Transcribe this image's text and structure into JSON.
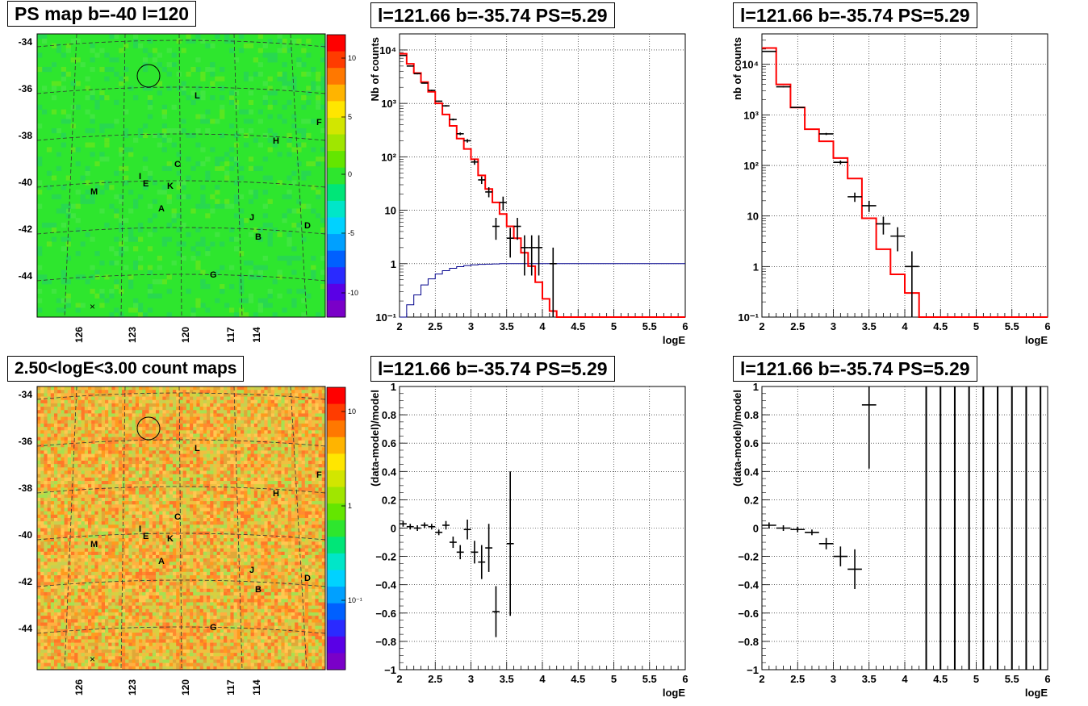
{
  "panels": {
    "ps_map": {
      "title": "PS map b=-40 l=120",
      "colorbar_ticks": [
        "10",
        "5",
        "0",
        "-5",
        "-10"
      ],
      "y_ticks": [
        "-34",
        "-36",
        "-38",
        "-40",
        "-42",
        "-44"
      ],
      "x_ticks": [
        "126",
        "123",
        "120",
        "117",
        "114"
      ],
      "labels": [
        "L",
        "F",
        "H",
        "C",
        "I",
        "E",
        "K",
        "M",
        "A",
        "J",
        "D",
        "B",
        "G"
      ]
    },
    "count_map": {
      "title": "2.50<logE<3.00 count maps",
      "colorbar_ticks": [
        "10",
        "1",
        "10⁻¹"
      ],
      "y_ticks": [
        "-34",
        "-36",
        "-38",
        "-40",
        "-42",
        "-44"
      ],
      "x_ticks": [
        "126",
        "123",
        "120",
        "117",
        "114"
      ],
      "labels": [
        "L",
        "F",
        "H",
        "C",
        "I",
        "E",
        "K",
        "M",
        "A",
        "J",
        "D",
        "B",
        "G"
      ]
    },
    "spec_left": {
      "title": "l=121.66 b=-35.74 PS=5.29",
      "ylabel": "Nb of counts",
      "xlabel": "logE"
    },
    "spec_right": {
      "title": "l=121.66 b=-35.74 PS=5.29",
      "ylabel": "nb of counts",
      "xlabel": "logE"
    },
    "resid_left": {
      "title": "l=121.66 b=-35.74 PS=5.29",
      "ylabel": "(data-model)/model",
      "xlabel": "logE"
    },
    "resid_right": {
      "title": "l=121.66 b=-35.74 PS=5.29",
      "ylabel": "(data-model)/model",
      "xlabel": "logE"
    }
  },
  "chart_data": [
    {
      "type": "heatmap",
      "id": "ps_map",
      "title": "PS map b=-40 l=120",
      "colorscale": "rainbow",
      "zrange": [
        -12,
        12
      ],
      "background_value": 0,
      "x_ticks": [
        126,
        123,
        120,
        117,
        114
      ],
      "y_ticks": [
        -34,
        -36,
        -38,
        -40,
        -42,
        -44
      ]
    },
    {
      "type": "heatmap",
      "id": "count_map",
      "title": "2.50<logE<3.00 count maps",
      "colorscale": "rainbow-log",
      "z_ticks": [
        10,
        1,
        0.1
      ],
      "x_ticks": [
        126,
        123,
        120,
        117,
        114
      ],
      "y_ticks": [
        -34,
        -36,
        -38,
        -40,
        -42,
        -44
      ]
    },
    {
      "type": "line",
      "id": "spec_left",
      "title": "l=121.66 b=-35.74 PS=5.29",
      "xlabel": "logE",
      "ylabel": "Nb of counts",
      "xlim": [
        2,
        6
      ],
      "ylim": [
        0.1,
        20000
      ],
      "yscale": "log",
      "grid": true,
      "x_ticks": [
        2,
        2.5,
        3,
        3.5,
        4,
        4.5,
        5,
        5.5,
        6
      ],
      "y_ticks": [
        0.1,
        1,
        10,
        100,
        1000,
        10000
      ],
      "y_tick_labels": [
        "10⁻¹",
        "1",
        "10",
        "10²",
        "10³",
        "10⁴"
      ],
      "model_color": "#ff0000",
      "data_points": [
        {
          "x": 2.05,
          "y": 7900,
          "xerr": 0.05,
          "ylo": 7800,
          "yhi": 8000
        },
        {
          "x": 2.15,
          "y": 5000,
          "xerr": 0.05,
          "ylo": 4900,
          "yhi": 5100
        },
        {
          "x": 2.25,
          "y": 3600,
          "xerr": 0.05,
          "ylo": 3500,
          "yhi": 3700
        },
        {
          "x": 2.35,
          "y": 2400,
          "xerr": 0.05,
          "ylo": 2350,
          "yhi": 2450
        },
        {
          "x": 2.45,
          "y": 1750,
          "xerr": 0.05,
          "ylo": 1700,
          "yhi": 1800
        },
        {
          "x": 2.55,
          "y": 1100,
          "xerr": 0.05,
          "ylo": 1070,
          "yhi": 1130
        },
        {
          "x": 2.65,
          "y": 900,
          "xerr": 0.05,
          "ylo": 870,
          "yhi": 930
        },
        {
          "x": 2.75,
          "y": 500,
          "xerr": 0.05,
          "ylo": 480,
          "yhi": 520
        },
        {
          "x": 2.85,
          "y": 270,
          "xerr": 0.05,
          "ylo": 255,
          "yhi": 285
        },
        {
          "x": 2.95,
          "y": 200,
          "xerr": 0.05,
          "ylo": 185,
          "yhi": 215
        },
        {
          "x": 3.05,
          "y": 80,
          "xerr": 0.05,
          "ylo": 71,
          "yhi": 89
        },
        {
          "x": 3.15,
          "y": 37,
          "xerr": 0.05,
          "ylo": 31,
          "yhi": 43
        },
        {
          "x": 3.25,
          "y": 22,
          "xerr": 0.05,
          "ylo": 17.5,
          "yhi": 27
        },
        {
          "x": 3.35,
          "y": 5,
          "xerr": 0.05,
          "ylo": 2.8,
          "yhi": 7.2
        },
        {
          "x": 3.45,
          "y": 14,
          "xerr": 0.05,
          "ylo": 10,
          "yhi": 18
        },
        {
          "x": 3.55,
          "y": 3,
          "xerr": 0.05,
          "ylo": 1.3,
          "yhi": 4.7
        },
        {
          "x": 3.65,
          "y": 5,
          "xerr": 0.05,
          "ylo": 2.8,
          "yhi": 7.2
        },
        {
          "x": 3.75,
          "y": 2,
          "xerr": 0.05,
          "ylo": 0.6,
          "yhi": 3.4
        },
        {
          "x": 3.85,
          "y": 2,
          "xerr": 0.05,
          "ylo": 0.6,
          "yhi": 3.4
        },
        {
          "x": 3.95,
          "y": 2,
          "xerr": 0.05,
          "ylo": 0.6,
          "yhi": 3.4
        },
        {
          "x": 4.15,
          "y": 1,
          "xerr": 0.05,
          "ylo": 0.1,
          "yhi": 2.0
        }
      ],
      "model_step": {
        "edges": [
          2.0,
          2.1,
          2.2,
          2.3,
          2.4,
          2.5,
          2.6,
          2.7,
          2.8,
          2.9,
          3.0,
          3.1,
          3.2,
          3.3,
          3.4,
          3.5,
          3.6,
          3.7,
          3.8,
          3.9,
          4.0,
          4.1,
          4.2,
          6.0
        ],
        "values": [
          8500,
          5500,
          3700,
          2500,
          1650,
          1000,
          620,
          380,
          220,
          140,
          90,
          45,
          25,
          14,
          8.5,
          5,
          3,
          1.6,
          0.9,
          0.45,
          0.22,
          0.13,
          0.1
        ]
      },
      "acceptance_step": {
        "color": "#00008b",
        "edges": [
          2.0,
          2.1,
          2.2,
          2.3,
          2.4,
          2.5,
          2.6,
          2.7,
          2.8,
          2.9,
          3.0,
          3.1,
          3.2,
          3.3,
          3.4,
          3.5,
          3.6,
          3.7,
          3.8,
          4.0,
          6.0
        ],
        "values": [
          0.1,
          0.17,
          0.26,
          0.4,
          0.52,
          0.64,
          0.74,
          0.82,
          0.88,
          0.92,
          0.95,
          0.97,
          0.98,
          0.99,
          1.0,
          1.0,
          1.0,
          1.0,
          1.0,
          1.0
        ]
      }
    },
    {
      "type": "line",
      "id": "spec_right",
      "title": "l=121.66 b=-35.74 PS=5.29",
      "xlabel": "logE",
      "ylabel": "nb of counts",
      "xlim": [
        2,
        6
      ],
      "ylim": [
        0.1,
        40000
      ],
      "yscale": "log",
      "grid": true,
      "x_ticks": [
        2,
        2.5,
        3,
        3.5,
        4,
        4.5,
        5,
        5.5,
        6
      ],
      "y_ticks": [
        0.1,
        1,
        10,
        100,
        1000,
        10000
      ],
      "y_tick_labels": [
        "10⁻¹",
        "1",
        "10",
        "10²",
        "10³",
        "10⁴"
      ],
      "model_color": "#ff0000",
      "data_points": [
        {
          "x": 2.1,
          "y": 18000,
          "xerr": 0.1,
          "ylo": 17700,
          "yhi": 18300
        },
        {
          "x": 2.3,
          "y": 3600,
          "xerr": 0.1,
          "ylo": 3500,
          "yhi": 3700
        },
        {
          "x": 2.5,
          "y": 1400,
          "xerr": 0.1,
          "ylo": 1360,
          "yhi": 1440
        },
        {
          "x": 2.9,
          "y": 420,
          "xerr": 0.1,
          "ylo": 400,
          "yhi": 440
        },
        {
          "x": 3.1,
          "y": 115,
          "xerr": 0.1,
          "ylo": 105,
          "yhi": 125
        },
        {
          "x": 3.3,
          "y": 24,
          "xerr": 0.1,
          "ylo": 19,
          "yhi": 29
        },
        {
          "x": 3.5,
          "y": 16,
          "xerr": 0.1,
          "ylo": 12,
          "yhi": 20
        },
        {
          "x": 3.7,
          "y": 7,
          "xerr": 0.1,
          "ylo": 4.3,
          "yhi": 9.7
        },
        {
          "x": 3.9,
          "y": 4,
          "xerr": 0.1,
          "ylo": 2,
          "yhi": 6
        },
        {
          "x": 4.1,
          "y": 1,
          "xerr": 0.1,
          "ylo": 0.1,
          "yhi": 2.0
        }
      ],
      "model_step": {
        "edges": [
          2.0,
          2.2,
          2.4,
          2.6,
          2.8,
          3.0,
          3.2,
          3.4,
          3.6,
          3.8,
          4.0,
          4.2,
          6.0
        ],
        "values": [
          21000,
          4000,
          1400,
          520,
          300,
          140,
          55,
          9,
          2.2,
          0.7,
          0.3,
          0.1
        ]
      }
    },
    {
      "type": "scatter",
      "id": "resid_left",
      "title": "l=121.66 b=-35.74 PS=5.29",
      "xlabel": "logE",
      "ylabel": "(data-model)/model",
      "xlim": [
        2,
        6
      ],
      "ylim": [
        -1,
        1
      ],
      "grid": true,
      "x_ticks": [
        2,
        2.5,
        3,
        3.5,
        4,
        4.5,
        5,
        5.5,
        6
      ],
      "y_ticks": [
        -1,
        -0.8,
        -0.6,
        -0.4,
        -0.2,
        0,
        0.2,
        0.4,
        0.6,
        0.8,
        1
      ],
      "y_tick_labels": [
        "−1",
        "−0.8",
        "−0.6",
        "−0.4",
        "−0.2",
        "0",
        "0.2",
        "0.4",
        "0.6",
        "0.8",
        "1"
      ],
      "data_points": [
        {
          "x": 2.05,
          "y": 0.03,
          "xerr": 0.05,
          "ylo": 0.01,
          "yhi": 0.05
        },
        {
          "x": 2.15,
          "y": 0.01,
          "xerr": 0.05,
          "ylo": -0.01,
          "yhi": 0.03
        },
        {
          "x": 2.25,
          "y": 0.0,
          "xerr": 0.05,
          "ylo": -0.02,
          "yhi": 0.02
        },
        {
          "x": 2.35,
          "y": 0.02,
          "xerr": 0.05,
          "ylo": 0.0,
          "yhi": 0.04
        },
        {
          "x": 2.45,
          "y": 0.01,
          "xerr": 0.05,
          "ylo": -0.01,
          "yhi": 0.03
        },
        {
          "x": 2.55,
          "y": -0.03,
          "xerr": 0.05,
          "ylo": -0.05,
          "yhi": -0.01
        },
        {
          "x": 2.65,
          "y": 0.02,
          "xerr": 0.05,
          "ylo": -0.01,
          "yhi": 0.05
        },
        {
          "x": 2.75,
          "y": -0.1,
          "xerr": 0.05,
          "ylo": -0.14,
          "yhi": -0.06
        },
        {
          "x": 2.85,
          "y": -0.17,
          "xerr": 0.05,
          "ylo": -0.22,
          "yhi": -0.12
        },
        {
          "x": 2.95,
          "y": -0.01,
          "xerr": 0.05,
          "ylo": -0.08,
          "yhi": 0.06
        },
        {
          "x": 3.05,
          "y": -0.17,
          "xerr": 0.05,
          "ylo": -0.25,
          "yhi": -0.09
        },
        {
          "x": 3.15,
          "y": -0.24,
          "xerr": 0.05,
          "ylo": -0.36,
          "yhi": -0.12
        },
        {
          "x": 3.25,
          "y": -0.14,
          "xerr": 0.05,
          "ylo": -0.31,
          "yhi": 0.03
        },
        {
          "x": 3.35,
          "y": -0.59,
          "xerr": 0.05,
          "ylo": -0.77,
          "yhi": -0.41
        },
        {
          "x": 3.55,
          "y": -0.11,
          "xerr": 0.05,
          "ylo": -0.62,
          "yhi": 0.4
        }
      ]
    },
    {
      "type": "scatter",
      "id": "resid_right",
      "title": "l=121.66 b=-35.74 PS=5.29",
      "xlabel": "logE",
      "ylabel": "(data-model)/model",
      "xlim": [
        2,
        6
      ],
      "ylim": [
        -1,
        1
      ],
      "grid": true,
      "x_ticks": [
        2,
        2.5,
        3,
        3.5,
        4,
        4.5,
        5,
        5.5,
        6
      ],
      "y_ticks": [
        -1,
        -0.8,
        -0.6,
        -0.4,
        -0.2,
        0,
        0.2,
        0.4,
        0.6,
        0.8,
        1
      ],
      "y_tick_labels": [
        "−1",
        "−0.8",
        "−0.6",
        "−0.4",
        "−0.2",
        "0",
        "0.2",
        "0.4",
        "0.6",
        "0.8",
        "1"
      ],
      "data_points": [
        {
          "x": 2.1,
          "y": 0.02,
          "xerr": 0.1,
          "ylo": 0.0,
          "yhi": 0.04
        },
        {
          "x": 2.3,
          "y": 0.0,
          "xerr": 0.1,
          "ylo": -0.02,
          "yhi": 0.02
        },
        {
          "x": 2.5,
          "y": -0.01,
          "xerr": 0.1,
          "ylo": -0.03,
          "yhi": 0.01
        },
        {
          "x": 2.7,
          "y": -0.03,
          "xerr": 0.1,
          "ylo": -0.05,
          "yhi": -0.01
        },
        {
          "x": 2.9,
          "y": -0.11,
          "xerr": 0.1,
          "ylo": -0.15,
          "yhi": -0.07
        },
        {
          "x": 3.1,
          "y": -0.2,
          "xerr": 0.1,
          "ylo": -0.27,
          "yhi": -0.13
        },
        {
          "x": 3.3,
          "y": -0.29,
          "xerr": 0.1,
          "ylo": -0.43,
          "yhi": -0.15
        },
        {
          "x": 3.5,
          "y": 0.87,
          "xerr": 0.1,
          "ylo": 0.42,
          "yhi": 1.0
        }
      ],
      "vertical_error_bars_x": [
        4.3,
        4.5,
        4.7,
        4.9,
        5.1,
        5.3,
        5.5,
        5.7,
        5.9
      ]
    }
  ]
}
